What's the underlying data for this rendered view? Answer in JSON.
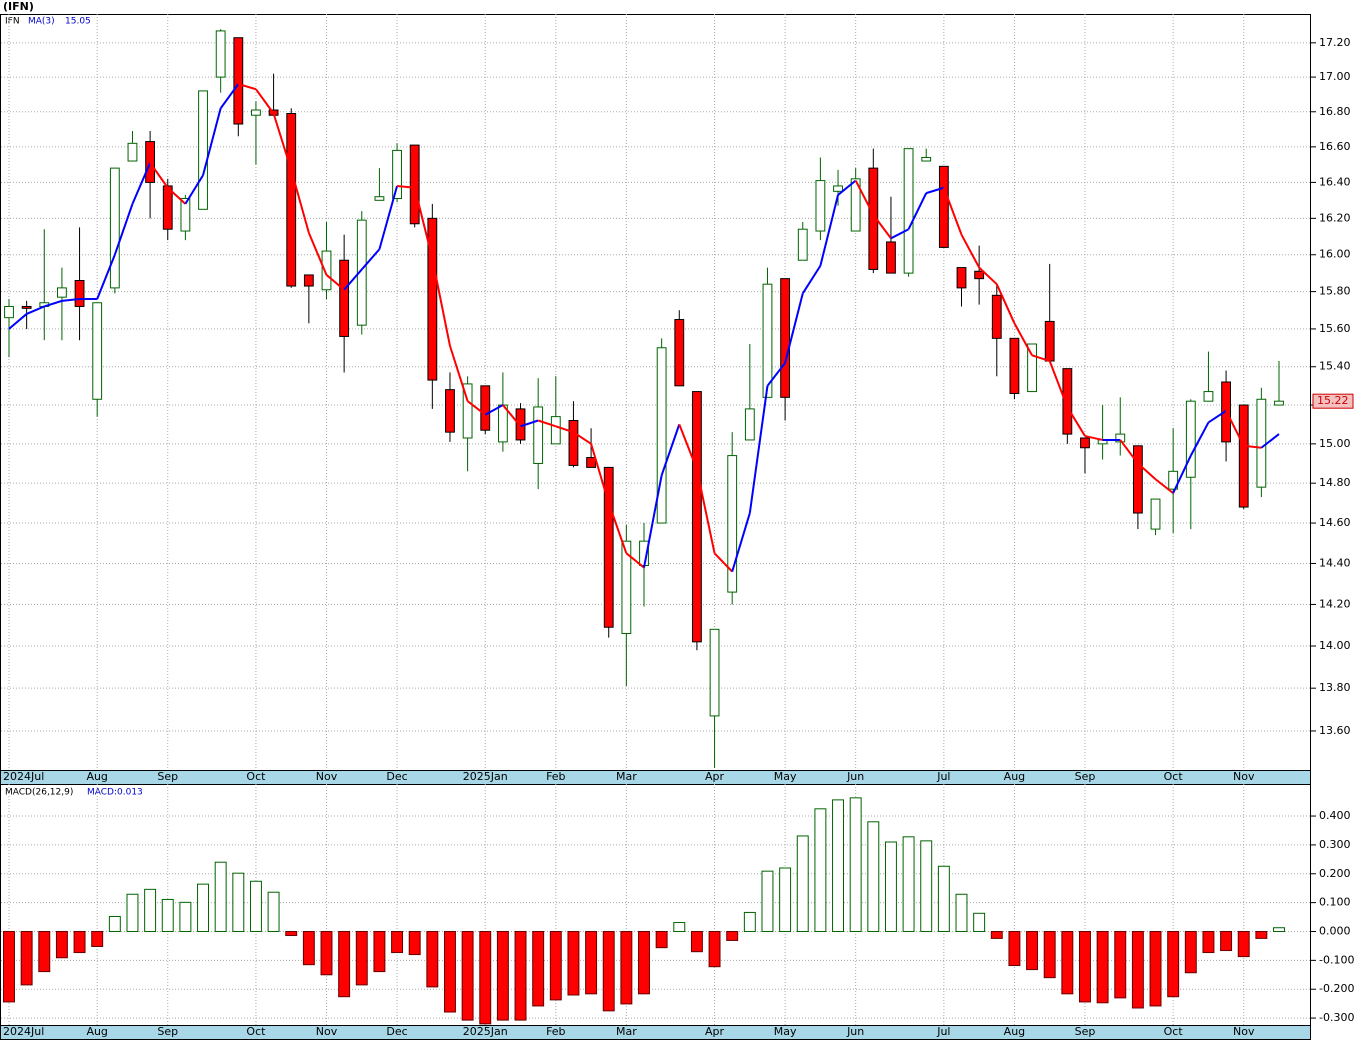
{
  "chart_data": [
    {
      "type": "candlestick",
      "title": "(IFN)",
      "ticker": "IFN",
      "categories": [
        "2024Jul",
        null,
        null,
        null,
        null,
        "Aug",
        null,
        null,
        null,
        "Sep",
        null,
        null,
        null,
        null,
        "Oct",
        null,
        null,
        null,
        "Nov",
        null,
        null,
        null,
        "Dec",
        null,
        null,
        null,
        null,
        "2025Jan",
        null,
        null,
        null,
        "Feb",
        null,
        null,
        null,
        "Mar",
        null,
        null,
        null,
        null,
        "Apr",
        null,
        null,
        null,
        "May",
        null,
        null,
        null,
        "Jun",
        null,
        null,
        null,
        null,
        "Jul",
        null,
        null,
        null,
        "Aug",
        null,
        null,
        null,
        "Sep",
        null,
        null,
        null,
        null,
        "Oct",
        null,
        null,
        null,
        "Nov",
        null,
        null
      ],
      "open": [
        15.66,
        15.72,
        15.72,
        15.77,
        15.86,
        15.23,
        15.82,
        16.52,
        16.63,
        16.38,
        16.13,
        16.25,
        17.0,
        17.23,
        16.78,
        16.81,
        16.79,
        15.89,
        15.81,
        15.97,
        15.62,
        16.3,
        16.31,
        16.61,
        16.2,
        15.28,
        15.03,
        15.3,
        15.01,
        15.18,
        14.9,
        15.0,
        15.12,
        14.93,
        14.88,
        14.06,
        14.39,
        14.6,
        15.65,
        15.27,
        13.67,
        14.26,
        15.02,
        15.24,
        15.87,
        15.97,
        16.13,
        16.35,
        16.13,
        16.48,
        16.07,
        15.9,
        16.52,
        16.49,
        15.93,
        15.91,
        15.78,
        15.55,
        15.27,
        15.64,
        15.39,
        15.03,
        15.0,
        15.01,
        14.99,
        14.57,
        14.77,
        14.83,
        15.22,
        15.32,
        15.2,
        14.78,
        15.2
      ],
      "high": [
        15.76,
        15.75,
        16.14,
        15.93,
        16.15,
        15.74,
        16.48,
        16.69,
        16.69,
        16.42,
        16.33,
        16.92,
        17.28,
        17.23,
        16.86,
        17.02,
        16.82,
        15.89,
        16.18,
        16.11,
        16.24,
        16.48,
        16.62,
        16.61,
        16.28,
        15.37,
        15.35,
        15.3,
        15.37,
        15.21,
        15.34,
        15.35,
        15.22,
        15.08,
        14.88,
        14.59,
        14.6,
        15.55,
        15.7,
        15.27,
        14.08,
        15.06,
        15.52,
        15.93,
        15.87,
        16.18,
        16.54,
        16.47,
        16.48,
        16.59,
        16.32,
        16.59,
        16.59,
        16.49,
        15.93,
        16.05,
        15.84,
        15.55,
        15.52,
        15.95,
        15.39,
        15.03,
        15.2,
        15.24,
        14.99,
        14.72,
        15.08,
        15.23,
        15.48,
        15.38,
        15.2,
        15.29,
        15.43
      ],
      "low": [
        15.45,
        15.6,
        15.54,
        15.54,
        15.54,
        15.14,
        15.79,
        16.52,
        16.2,
        16.08,
        16.08,
        16.25,
        16.91,
        16.66,
        16.5,
        16.78,
        15.82,
        15.63,
        15.76,
        15.37,
        15.57,
        16.3,
        16.29,
        16.15,
        15.18,
        15.01,
        14.86,
        15.05,
        14.96,
        15.0,
        14.77,
        15.0,
        14.88,
        14.88,
        14.04,
        13.81,
        14.19,
        14.6,
        15.3,
        13.98,
        13.43,
        14.2,
        15.02,
        15.24,
        15.12,
        15.97,
        16.08,
        16.27,
        16.13,
        15.9,
        15.9,
        15.88,
        16.52,
        16.04,
        15.72,
        15.73,
        15.35,
        15.23,
        15.27,
        15.43,
        15.0,
        14.85,
        14.92,
        14.94,
        14.57,
        14.54,
        14.55,
        14.57,
        15.22,
        14.91,
        14.67,
        14.73,
        15.2
      ],
      "close": [
        15.72,
        15.71,
        15.74,
        15.82,
        15.72,
        15.74,
        16.48,
        16.62,
        16.4,
        16.14,
        16.31,
        16.92,
        17.27,
        16.73,
        16.81,
        16.78,
        15.83,
        15.83,
        16.02,
        15.56,
        16.19,
        16.32,
        16.58,
        16.17,
        15.33,
        15.06,
        15.31,
        15.07,
        15.2,
        15.02,
        15.19,
        15.14,
        14.89,
        14.88,
        14.09,
        14.51,
        14.51,
        15.5,
        15.3,
        14.02,
        14.08,
        14.94,
        15.18,
        15.84,
        15.24,
        16.14,
        16.41,
        16.38,
        16.42,
        15.92,
        15.9,
        16.59,
        16.54,
        16.04,
        15.82,
        15.87,
        15.55,
        15.26,
        15.52,
        15.43,
        15.05,
        14.98,
        15.02,
        15.05,
        14.65,
        14.72,
        14.86,
        15.22,
        15.27,
        15.01,
        14.68,
        15.23,
        15.22
      ],
      "up_color": "#006400",
      "down_color": "#ff0000",
      "ma": {
        "name": "MA(3)",
        "up_color": "#0000ff",
        "down_color": "#ff0000",
        "values": [
          15.6,
          15.68,
          15.72,
          15.75,
          15.76,
          15.76,
          16.0,
          16.28,
          16.51,
          16.37,
          16.28,
          16.44,
          16.82,
          16.96,
          16.93,
          16.79,
          16.47,
          16.12,
          15.89,
          15.81,
          15.92,
          16.03,
          16.38,
          16.37,
          15.98,
          15.51,
          15.22,
          15.15,
          15.2,
          15.09,
          15.12,
          15.09,
          15.06,
          15.0,
          14.7,
          14.45,
          14.38,
          14.84,
          15.1,
          14.87,
          14.45,
          14.36,
          14.65,
          15.3,
          15.42,
          15.79,
          15.94,
          16.33,
          16.41,
          16.22,
          16.09,
          16.14,
          16.34,
          16.37,
          16.11,
          15.93,
          15.84,
          15.63,
          15.46,
          15.43,
          15.19,
          15.04,
          15.02,
          15.02,
          14.9,
          14.82,
          14.75,
          14.94,
          15.11,
          15.17,
          14.99,
          14.98,
          15.05
        ]
      },
      "log_scale": true,
      "grid": true,
      "ylim": [
        13.42,
        17.37
      ],
      "yticks": [
        {
          "value": 17.2,
          "label": "17.20"
        },
        {
          "value": 17.0,
          "label": "17.00"
        },
        {
          "value": 16.8,
          "label": "16.80"
        },
        {
          "value": 16.6,
          "label": "16.60"
        },
        {
          "value": 16.4,
          "label": "16.40"
        },
        {
          "value": 16.2,
          "label": "16.20"
        },
        {
          "value": 16.0,
          "label": "16.00"
        },
        {
          "value": 15.8,
          "label": "15.80"
        },
        {
          "value": 15.6,
          "label": "15.60"
        },
        {
          "value": 15.4,
          "label": "15.40"
        },
        {
          "value": 15.2,
          "label": "15.20"
        },
        {
          "value": 15.0,
          "label": "15.00"
        },
        {
          "value": 14.8,
          "label": "14.80"
        },
        {
          "value": 14.6,
          "label": "14.60"
        },
        {
          "value": 14.4,
          "label": "14.40"
        },
        {
          "value": 14.2,
          "label": "14.20"
        },
        {
          "value": 14.0,
          "label": "14.00"
        },
        {
          "value": 13.8,
          "label": "13.80"
        },
        {
          "value": 13.6,
          "label": "13.60"
        }
      ]
    },
    {
      "type": "bar",
      "name": "MACD(26,12,9)",
      "readout": "MACD:0.013",
      "values": [
        -0.244,
        -0.185,
        -0.139,
        -0.091,
        -0.073,
        -0.052,
        0.052,
        0.129,
        0.146,
        0.111,
        0.101,
        0.164,
        0.24,
        0.202,
        0.174,
        0.136,
        -0.014,
        -0.115,
        -0.15,
        -0.226,
        -0.185,
        -0.139,
        -0.073,
        -0.08,
        -0.192,
        -0.279,
        -0.307,
        -0.32,
        -0.307,
        -0.307,
        -0.258,
        -0.237,
        -0.22,
        -0.216,
        -0.275,
        -0.251,
        -0.216,
        -0.056,
        0.031,
        -0.07,
        -0.122,
        -0.031,
        0.066,
        0.209,
        0.22,
        0.331,
        0.425,
        0.456,
        0.463,
        0.38,
        0.31,
        0.328,
        0.314,
        0.226,
        0.129,
        0.063,
        -0.024,
        -0.118,
        -0.132,
        -0.16,
        -0.216,
        -0.244,
        -0.247,
        -0.23,
        -0.265,
        -0.258,
        -0.226,
        -0.143,
        -0.073,
        -0.066,
        -0.087,
        -0.024,
        0.013
      ],
      "up_color": "#006400",
      "down_color": "#ff0000",
      "grid": true,
      "ylim": [
        -0.324,
        0.511
      ],
      "yticks": [
        {
          "value": 0.4,
          "label": "0.400"
        },
        {
          "value": 0.3,
          "label": "0.300"
        },
        {
          "value": 0.2,
          "label": "0.200"
        },
        {
          "value": 0.1,
          "label": "0.100"
        },
        {
          "value": 0,
          "label": "0.000"
        },
        {
          "value": -0.1,
          "label": "-0.100"
        },
        {
          "value": -0.2,
          "label": "-0.200"
        },
        {
          "value": -0.3,
          "label": "-0.300"
        }
      ]
    }
  ]
}
